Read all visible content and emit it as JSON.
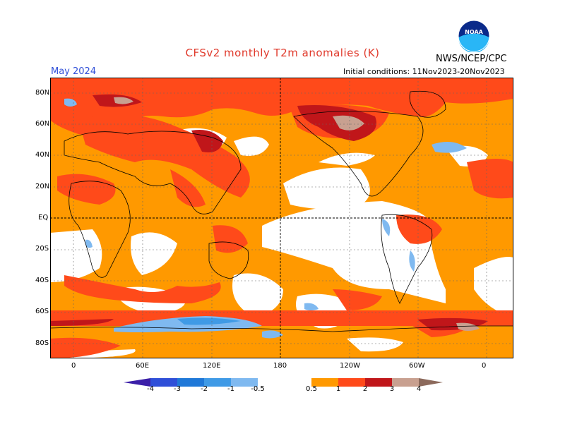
{
  "header": {
    "title": "CFSv2 monthly T2m anomalies (K)",
    "month": "May 2024",
    "initial_conditions": "Initial conditions: 11Nov2023-20Nov2023",
    "agency": "NWS/NCEP/CPC",
    "logo_text": "NOAA"
  },
  "axes": {
    "lat_labels": [
      "80N",
      "60N",
      "40N",
      "20N",
      "EQ",
      "20S",
      "40S",
      "60S",
      "80S"
    ],
    "lon_labels": [
      "0",
      "60E",
      "120E",
      "180",
      "120W",
      "60W",
      "0"
    ]
  },
  "colorbar": {
    "labels": [
      "-4",
      "-3",
      "-2",
      "-1",
      "-0.5",
      "0.5",
      "1",
      "2",
      "3",
      "4"
    ],
    "colors": [
      "#3b1fa8",
      "#2f4fd8",
      "#1f78d8",
      "#3f9ae6",
      "#7fb9f0",
      "#ffffff",
      "#ff9900",
      "#ff4a1a",
      "#c0161a",
      "#8a0a0a",
      "#c8a090",
      "#8c6a5c"
    ]
  },
  "colors": {
    "warm_weak": "#ff9900",
    "warm_moderate": "#ff4a1a",
    "warm_strong": "#c0161a",
    "warm_extreme": "#c8a090",
    "cool_weak": "#7fb9f0",
    "cool_moderate": "#3f9ae6",
    "neutral": "#ffffff"
  }
}
